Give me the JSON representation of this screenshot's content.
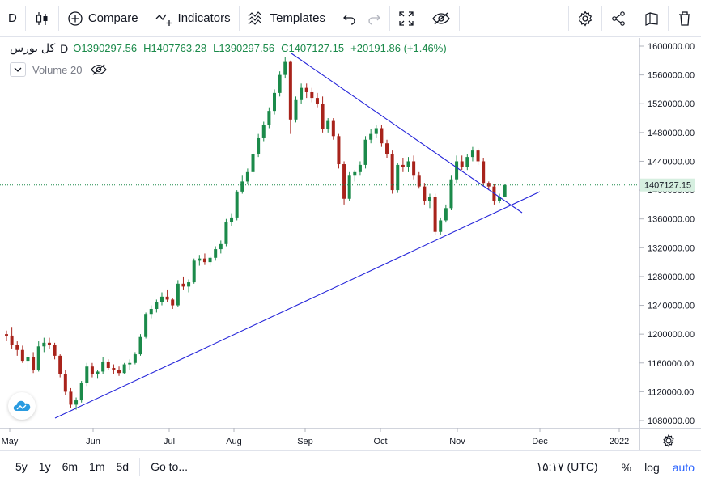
{
  "toolbar": {
    "interval": "D",
    "compare": "Compare",
    "indicators": "Indicators",
    "templates": "Templates"
  },
  "legend": {
    "symbol": "کل بورس",
    "interval": "D",
    "open": "O1390297.56",
    "high": "H1407763.28",
    "low": "L1390297.56",
    "close": "C1407127.15",
    "change": "+20191.86 (+1.46%)",
    "volume": "Volume 20"
  },
  "colors": {
    "up": "#1b8a4a",
    "down": "#a8231b",
    "trendline": "#2323d9",
    "price_tag": "#d6efe0"
  },
  "chart_data": {
    "type": "candlestick",
    "price_axis": {
      "min": 1080000,
      "max": 1600000,
      "ticks": [
        "1600000.00",
        "1560000.00",
        "1520000.00",
        "1480000.00",
        "1440000.00",
        "1400000.00",
        "1360000.00",
        "1320000.00",
        "1280000.00",
        "1240000.00",
        "1200000.00",
        "1160000.00",
        "1120000.00",
        "1080000.00"
      ]
    },
    "last_price": "1407127.15",
    "time_axis": [
      "May",
      "Jun",
      "Jul",
      "Aug",
      "Sep",
      "Oct",
      "Nov",
      "Dec",
      "2022"
    ],
    "candles": [
      [
        1200000,
        1205000,
        1190000,
        1198000
      ],
      [
        1198000,
        1210000,
        1180000,
        1185000
      ],
      [
        1185000,
        1190000,
        1170000,
        1178000
      ],
      [
        1178000,
        1184000,
        1160000,
        1163000
      ],
      [
        1163000,
        1172000,
        1150000,
        1168000
      ],
      [
        1168000,
        1175000,
        1146000,
        1150000
      ],
      [
        1150000,
        1190000,
        1148000,
        1183000
      ],
      [
        1183000,
        1195000,
        1175000,
        1188000
      ],
      [
        1188000,
        1195000,
        1180000,
        1185000
      ],
      [
        1185000,
        1188000,
        1165000,
        1170000
      ],
      [
        1170000,
        1172000,
        1140000,
        1145000
      ],
      [
        1145000,
        1150000,
        1115000,
        1120000
      ],
      [
        1120000,
        1125000,
        1098000,
        1102000
      ],
      [
        1102000,
        1112000,
        1095000,
        1108000
      ],
      [
        1108000,
        1135000,
        1105000,
        1132000
      ],
      [
        1132000,
        1160000,
        1128000,
        1155000
      ],
      [
        1155000,
        1160000,
        1140000,
        1145000
      ],
      [
        1145000,
        1150000,
        1138000,
        1148000
      ],
      [
        1148000,
        1168000,
        1145000,
        1162000
      ],
      [
        1162000,
        1165000,
        1150000,
        1153000
      ],
      [
        1153000,
        1158000,
        1145000,
        1150000
      ],
      [
        1150000,
        1155000,
        1142000,
        1146000
      ],
      [
        1146000,
        1160000,
        1144000,
        1158000
      ],
      [
        1158000,
        1165000,
        1150000,
        1160000
      ],
      [
        1160000,
        1175000,
        1158000,
        1172000
      ],
      [
        1172000,
        1200000,
        1170000,
        1196000
      ],
      [
        1196000,
        1230000,
        1194000,
        1228000
      ],
      [
        1228000,
        1240000,
        1222000,
        1235000
      ],
      [
        1235000,
        1248000,
        1230000,
        1244000
      ],
      [
        1244000,
        1258000,
        1240000,
        1252000
      ],
      [
        1252000,
        1262000,
        1245000,
        1248000
      ],
      [
        1248000,
        1250000,
        1235000,
        1240000
      ],
      [
        1240000,
        1275000,
        1238000,
        1270000
      ],
      [
        1270000,
        1280000,
        1262000,
        1266000
      ],
      [
        1266000,
        1276000,
        1258000,
        1272000
      ],
      [
        1272000,
        1305000,
        1270000,
        1302000
      ],
      [
        1302000,
        1310000,
        1295000,
        1305000
      ],
      [
        1305000,
        1312000,
        1296000,
        1300000
      ],
      [
        1300000,
        1308000,
        1295000,
        1306000
      ],
      [
        1306000,
        1322000,
        1302000,
        1318000
      ],
      [
        1318000,
        1330000,
        1312000,
        1325000
      ],
      [
        1325000,
        1360000,
        1322000,
        1356000
      ],
      [
        1356000,
        1368000,
        1350000,
        1362000
      ],
      [
        1362000,
        1400000,
        1358000,
        1398000
      ],
      [
        1398000,
        1420000,
        1395000,
        1412000
      ],
      [
        1412000,
        1430000,
        1408000,
        1425000
      ],
      [
        1425000,
        1455000,
        1420000,
        1450000
      ],
      [
        1450000,
        1478000,
        1446000,
        1472000
      ],
      [
        1472000,
        1495000,
        1468000,
        1490000
      ],
      [
        1490000,
        1515000,
        1486000,
        1510000
      ],
      [
        1510000,
        1540000,
        1505000,
        1535000
      ],
      [
        1535000,
        1565000,
        1530000,
        1560000
      ],
      [
        1560000,
        1585000,
        1555000,
        1578000
      ],
      [
        1578000,
        1580000,
        1478000,
        1498000
      ],
      [
        1498000,
        1530000,
        1494000,
        1525000
      ],
      [
        1525000,
        1548000,
        1520000,
        1542000
      ],
      [
        1542000,
        1548000,
        1528000,
        1536000
      ],
      [
        1536000,
        1542000,
        1522000,
        1528000
      ],
      [
        1528000,
        1535000,
        1515000,
        1520000
      ],
      [
        1520000,
        1530000,
        1480000,
        1485000
      ],
      [
        1485000,
        1500000,
        1480000,
        1496000
      ],
      [
        1496000,
        1500000,
        1470000,
        1475000
      ],
      [
        1475000,
        1478000,
        1430000,
        1436000
      ],
      [
        1436000,
        1440000,
        1380000,
        1388000
      ],
      [
        1388000,
        1425000,
        1385000,
        1420000
      ],
      [
        1420000,
        1428000,
        1412000,
        1425000
      ],
      [
        1425000,
        1440000,
        1420000,
        1435000
      ],
      [
        1435000,
        1475000,
        1430000,
        1470000
      ],
      [
        1470000,
        1485000,
        1465000,
        1478000
      ],
      [
        1478000,
        1490000,
        1472000,
        1486000
      ],
      [
        1486000,
        1490000,
        1460000,
        1465000
      ],
      [
        1465000,
        1470000,
        1445000,
        1450000
      ],
      [
        1450000,
        1455000,
        1395000,
        1400000
      ],
      [
        1400000,
        1438000,
        1396000,
        1435000
      ],
      [
        1435000,
        1445000,
        1425000,
        1432000
      ],
      [
        1432000,
        1446000,
        1425000,
        1440000
      ],
      [
        1440000,
        1448000,
        1415000,
        1420000
      ],
      [
        1420000,
        1425000,
        1402000,
        1405000
      ],
      [
        1405000,
        1410000,
        1380000,
        1385000
      ],
      [
        1385000,
        1395000,
        1375000,
        1390000
      ],
      [
        1390000,
        1395000,
        1338000,
        1342000
      ],
      [
        1342000,
        1362000,
        1338000,
        1358000
      ],
      [
        1358000,
        1380000,
        1355000,
        1375000
      ],
      [
        1375000,
        1420000,
        1372000,
        1415000
      ],
      [
        1415000,
        1448000,
        1410000,
        1440000
      ],
      [
        1440000,
        1448000,
        1428000,
        1432000
      ],
      [
        1432000,
        1450000,
        1428000,
        1446000
      ],
      [
        1446000,
        1460000,
        1440000,
        1455000
      ],
      [
        1455000,
        1458000,
        1435000,
        1440000
      ],
      [
        1440000,
        1445000,
        1405000,
        1410000
      ],
      [
        1410000,
        1412000,
        1400000,
        1405000
      ],
      [
        1405000,
        1408000,
        1380000,
        1385000
      ],
      [
        1385000,
        1395000,
        1382000,
        1390000
      ],
      [
        1390297.56,
        1407763.28,
        1390297.56,
        1407127.15
      ]
    ]
  },
  "bottombar": {
    "ranges": [
      "5y",
      "1y",
      "6m",
      "1m",
      "5d"
    ],
    "goto": "Go to...",
    "clock": "۱۵:۱۷ (UTC)",
    "percent": "%",
    "log": "log",
    "auto": "auto"
  }
}
